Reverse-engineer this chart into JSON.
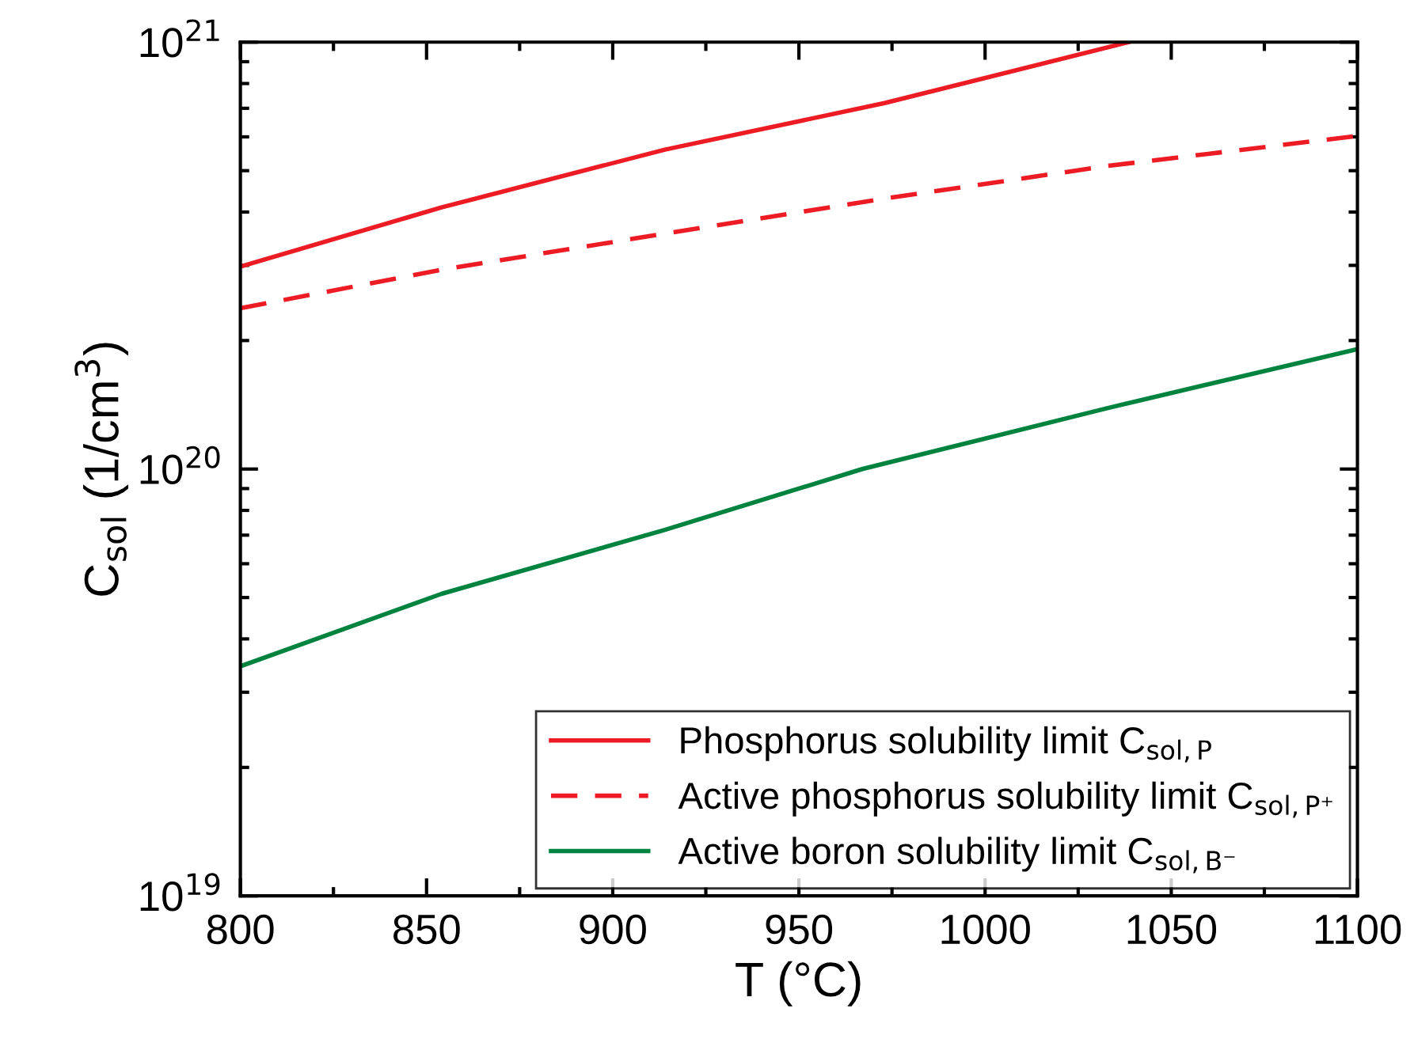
{
  "chart_data": {
    "type": "line",
    "xlabel": "T (°C)",
    "ylabel": "C$_{sol}$ (1/cm$^{3}$)",
    "log": "y",
    "xlim": [
      800,
      1100
    ],
    "xticks": [
      800,
      850,
      900,
      950,
      1000,
      1050,
      1100
    ],
    "ylim": [
      1e+19,
      1e+21
    ],
    "yticks": [
      {
        "value": 1e+19,
        "label": "10$^{19}$"
      },
      {
        "value": 1e+20,
        "label": "10$^{20}$"
      },
      {
        "value": 1e+21,
        "label": "10$^{21}$"
      }
    ],
    "grid": false,
    "legend": "bottom right",
    "marker": "none",
    "series": [
      {
        "name": "Phosphorus solubility limit C$_{sol,P}$",
        "color": "#ed1c24",
        "line_style": "solid",
        "x": [
          800,
          854,
          914,
          973,
          1038.5
        ],
        "values": [
          2.98e+20,
          4.1e+20,
          5.6e+20,
          7.2e+20,
          1e+21
        ]
      },
      {
        "name": "Active phosphorus solubility limit C$_{sol,P⁺}$",
        "color": "#ed1c24",
        "line_style": "dashed",
        "x": [
          800,
          854,
          914,
          973,
          1033,
          1100
        ],
        "values": [
          2.38e+20,
          2.93e+20,
          3.56e+20,
          4.3e+20,
          5.13e+20,
          6.03e+20
        ]
      },
      {
        "name": "Active boron solubility limit C$_{sol,B⁻}$",
        "color": "#00833e",
        "line_style": "solid",
        "x": [
          800,
          854,
          914,
          967,
          1033,
          1100
        ],
        "values": [
          3.45e+19,
          5.1e+19,
          7.2e+19,
          1e+20,
          1.39e+20,
          1.91e+20
        ]
      }
    ]
  }
}
